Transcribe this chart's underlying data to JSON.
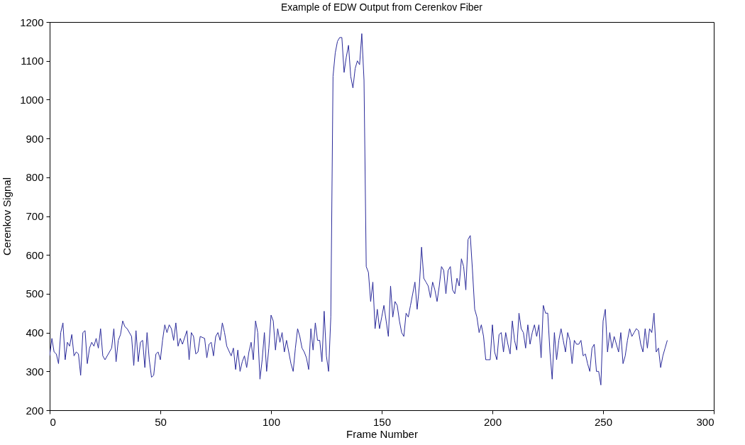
{
  "chart_data": {
    "type": "line",
    "title": "Example of EDW Output from Cerenkov Fiber",
    "xlabel": "Frame Number",
    "ylabel": "Cerenkov Signal",
    "x": [
      0,
      1,
      2,
      3,
      4,
      5,
      6,
      7,
      8,
      9,
      10,
      11,
      12,
      13,
      14,
      15,
      16,
      17,
      18,
      19,
      20,
      21,
      22,
      23,
      24,
      25,
      27,
      28,
      29,
      30,
      31,
      32,
      33,
      34,
      35,
      37,
      38,
      39,
      40,
      41,
      42,
      43,
      44,
      45,
      46,
      47,
      48,
      49,
      50,
      51,
      52,
      53,
      54,
      55,
      56,
      57,
      58,
      59,
      60,
      62,
      63,
      64,
      65,
      66,
      67,
      68,
      70,
      71,
      72,
      73,
      74,
      75,
      76,
      77,
      78,
      79,
      80,
      82,
      83,
      84,
      85,
      86,
      87,
      88,
      89,
      90,
      91,
      92,
      93,
      94,
      95,
      96,
      97,
      98,
      99,
      100,
      101,
      102,
      103,
      104,
      105,
      106,
      107,
      108,
      109,
      110,
      111,
      112,
      113,
      114,
      115,
      116,
      117,
      118,
      119,
      120,
      121,
      122,
      123,
      124,
      125,
      126,
      127,
      128,
      129,
      130,
      131,
      132,
      133,
      134,
      135,
      136,
      137,
      138,
      139,
      140,
      141,
      142,
      143,
      144,
      145,
      146,
      147,
      148,
      149,
      150,
      151,
      152,
      153,
      154,
      155,
      156,
      157,
      158,
      159,
      160,
      161,
      162,
      163,
      164,
      165,
      166,
      167,
      168,
      169,
      170,
      171,
      172,
      173,
      174,
      175,
      176,
      177,
      178,
      179,
      180,
      181,
      182,
      183,
      184,
      185,
      186,
      187,
      188,
      189,
      190,
      191,
      192,
      193,
      194,
      195,
      196,
      197,
      198,
      199,
      200,
      201,
      202,
      203,
      204,
      205,
      206,
      207,
      208,
      209,
      210,
      211,
      212,
      213,
      214,
      215,
      216,
      217,
      218,
      219,
      220,
      221,
      222,
      223,
      224,
      225,
      226,
      227,
      228,
      229,
      230,
      231,
      232,
      233,
      234,
      235,
      236,
      237,
      238,
      239,
      240,
      241,
      242,
      243,
      244,
      245,
      246,
      247,
      248,
      249,
      250,
      251,
      252,
      253,
      254,
      255,
      256,
      257,
      258,
      259,
      260,
      261,
      262,
      263,
      264,
      265,
      266,
      267,
      268,
      269,
      270,
      271,
      272,
      273,
      274,
      275,
      276,
      277,
      278,
      279
    ],
    "series": [
      {
        "color": "#2a2a9a",
        "values": [
          340,
          385,
          350,
          345,
          320,
          400,
          425,
          330,
          375,
          365,
          395,
          340,
          350,
          345,
          290,
          400,
          405,
          320,
          360,
          375,
          365,
          385,
          360,
          410,
          340,
          330,
          350,
          360,
          410,
          325,
          380,
          395,
          430,
          415,
          410,
          390,
          315,
          405,
          325,
          375,
          380,
          310,
          400,
          330,
          285,
          290,
          345,
          350,
          330,
          380,
          420,
          400,
          420,
          410,
          380,
          425,
          365,
          385,
          370,
          405,
          330,
          400,
          390,
          345,
          350,
          390,
          385,
          335,
          370,
          375,
          340,
          390,
          400,
          380,
          425,
          400,
          365,
          340,
          360,
          305,
          355,
          300,
          325,
          340,
          310,
          350,
          375,
          330,
          430,
          400,
          280,
          330,
          400,
          300,
          360,
          445,
          430,
          355,
          410,
          375,
          400,
          350,
          380,
          350,
          320,
          300,
          360,
          410,
          390,
          360,
          350,
          335,
          305,
          410,
          355,
          425,
          380,
          380,
          325,
          455,
          340,
          300,
          440,
          1060,
          1120,
          1150,
          1160,
          1160,
          1070,
          1110,
          1140,
          1060,
          1030,
          1080,
          1100,
          1090,
          1170,
          1050,
          570,
          555,
          480,
          530,
          410,
          460,
          410,
          440,
          470,
          430,
          390,
          520,
          440,
          480,
          470,
          430,
          400,
          390,
          450,
          440,
          470,
          500,
          530,
          460,
          520,
          620,
          540,
          530,
          520,
          490,
          530,
          510,
          480,
          520,
          570,
          560,
          500,
          560,
          570,
          510,
          500,
          540,
          520,
          590,
          570,
          510,
          640,
          650,
          560,
          460,
          440,
          400,
          420,
          390,
          330,
          330,
          330,
          420,
          350,
          330,
          395,
          400,
          350,
          400,
          370,
          345,
          430,
          380,
          355,
          450,
          410,
          400,
          360,
          420,
          370,
          400,
          420,
          390,
          420,
          335,
          470,
          450,
          450,
          350,
          280,
          400,
          330,
          380,
          410,
          380,
          350,
          400,
          380,
          320,
          380,
          370,
          370,
          380,
          340,
          345,
          320,
          300,
          360,
          370,
          300,
          300,
          265,
          430,
          460,
          350,
          400,
          360,
          390,
          370,
          350,
          400,
          320,
          340,
          380,
          410,
          390,
          400,
          410,
          405,
          370,
          350,
          410,
          360,
          410,
          400,
          450,
          350,
          360,
          310,
          340,
          360,
          380
        ]
      }
    ],
    "xlim": [
      0,
      300
    ],
    "xticks": [
      0,
      50,
      100,
      150,
      200,
      250,
      300
    ],
    "ylim": [
      200,
      1200
    ],
    "yticks": [
      200,
      300,
      400,
      500,
      600,
      700,
      800,
      900,
      1000,
      1100,
      1200
    ],
    "grid": false
  }
}
